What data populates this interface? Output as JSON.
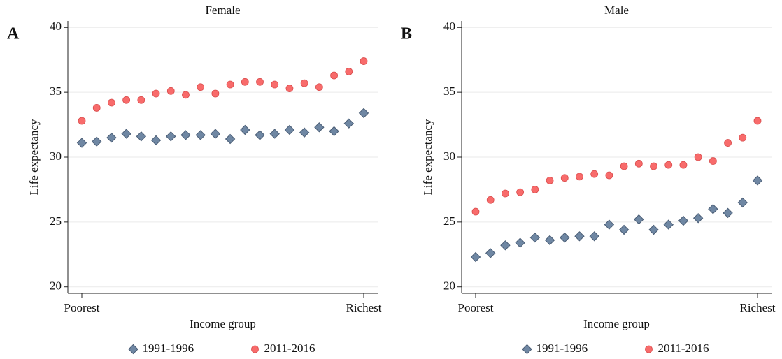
{
  "chart_data": [
    {
      "type": "scatter",
      "panel_label": "A",
      "title": "Female",
      "x_label": "Income group",
      "y_label": "Life expectancy",
      "categories": [
        "Poorest",
        null,
        null,
        null,
        null,
        null,
        null,
        null,
        null,
        null,
        null,
        null,
        null,
        null,
        null,
        null,
        null,
        null,
        null,
        "Richest"
      ],
      "ylim": [
        19.5,
        40.5
      ],
      "yticks": [
        20,
        25,
        30,
        35,
        40
      ],
      "grid": true,
      "series": [
        {
          "name": "1991-1996",
          "color": "#6f87a3",
          "marker": "diamond",
          "values": [
            31.1,
            31.2,
            31.5,
            31.8,
            31.6,
            31.3,
            31.6,
            31.7,
            31.7,
            31.8,
            31.4,
            32.1,
            31.7,
            31.8,
            32.1,
            31.9,
            32.3,
            32.0,
            32.6,
            33.4
          ]
        },
        {
          "name": "2011-2016",
          "color": "#f86b6b",
          "marker": "circle",
          "values": [
            32.8,
            33.8,
            34.2,
            34.4,
            34.4,
            34.9,
            35.1,
            34.8,
            35.4,
            34.9,
            35.6,
            35.8,
            35.8,
            35.6,
            35.3,
            35.7,
            35.4,
            36.3,
            36.6,
            37.4
          ]
        }
      ]
    },
    {
      "type": "scatter",
      "panel_label": "B",
      "title": "Male",
      "x_label": "Income group",
      "y_label": "Life expectancy",
      "categories": [
        "Poorest",
        null,
        null,
        null,
        null,
        null,
        null,
        null,
        null,
        null,
        null,
        null,
        null,
        null,
        null,
        null,
        null,
        null,
        null,
        "Richest"
      ],
      "ylim": [
        19.5,
        40.5
      ],
      "yticks": [
        20,
        25,
        30,
        35,
        40
      ],
      "grid": true,
      "series": [
        {
          "name": "1991-1996",
          "color": "#6f87a3",
          "marker": "diamond",
          "values": [
            22.3,
            22.6,
            23.2,
            23.4,
            23.8,
            23.6,
            23.8,
            23.9,
            23.9,
            24.8,
            24.4,
            25.2,
            24.4,
            24.8,
            25.1,
            25.3,
            26.0,
            25.7,
            26.5,
            28.2
          ]
        },
        {
          "name": "2011-2016",
          "color": "#f86b6b",
          "marker": "circle",
          "values": [
            25.8,
            26.7,
            27.2,
            27.3,
            27.5,
            28.2,
            28.4,
            28.5,
            28.7,
            28.6,
            29.3,
            29.5,
            29.3,
            29.4,
            29.4,
            30.0,
            29.7,
            31.1,
            31.5,
            32.8
          ]
        }
      ]
    }
  ]
}
